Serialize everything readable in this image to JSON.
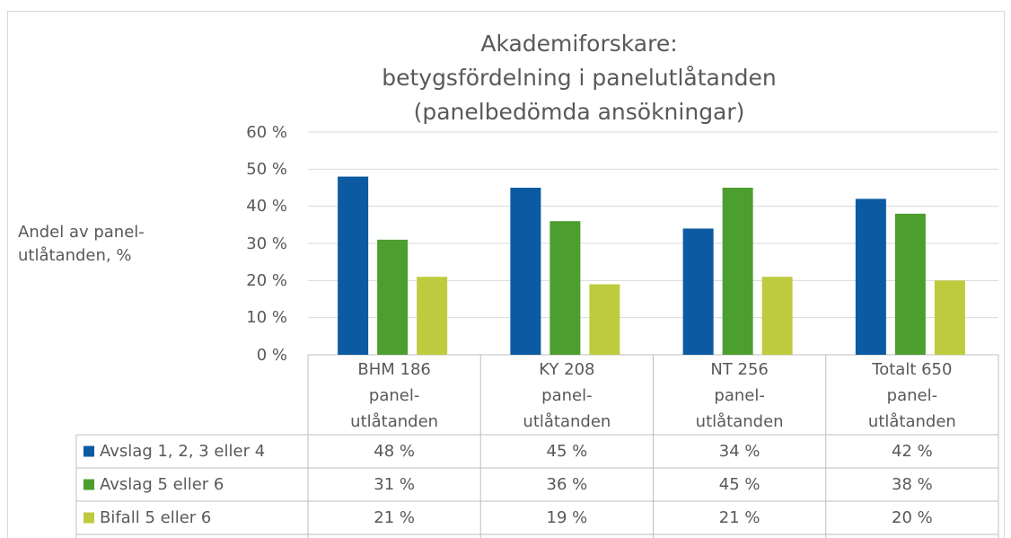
{
  "chart_data": {
    "type": "bar",
    "title": "Akademiforskare:\nbetygsfördelning i panelutlåtanden\n(panelbedömda ansökningar)",
    "y_label": "Andel av panel-\nutlåtanden, %",
    "categories": [
      "BHM 186\npanel-\nutlåtanden",
      "KY 208\npanel-\nutlåtanden",
      "NT 256\npanel-\nutlåtanden",
      "Totalt 650\npanel-\nutlåtanden"
    ],
    "series": [
      {
        "name": "Avslag 1, 2, 3 eller 4",
        "color": "#0b5aa2",
        "values": [
          48,
          45,
          34,
          42
        ],
        "value_labels": [
          "48 %",
          "45 %",
          "34 %",
          "42 %"
        ]
      },
      {
        "name": "Avslag 5 eller 6",
        "color": "#4c9e2f",
        "values": [
          31,
          36,
          45,
          38
        ],
        "value_labels": [
          "31 %",
          "36 %",
          "45 %",
          "38 %"
        ]
      },
      {
        "name": "Bifall 5 eller 6",
        "color": "#bfcb3e",
        "values": [
          21,
          19,
          21,
          20
        ],
        "value_labels": [
          "21 %",
          "19 %",
          "21 %",
          "20 %"
        ]
      }
    ],
    "ylim": [
      0,
      60
    ],
    "yticks": [
      {
        "value": 0,
        "label": "0 %"
      },
      {
        "value": 10,
        "label": "10 %"
      },
      {
        "value": 20,
        "label": "20 %"
      },
      {
        "value": 30,
        "label": "30 %"
      },
      {
        "value": 40,
        "label": "40 %"
      },
      {
        "value": 50,
        "label": "50 %"
      },
      {
        "value": 60,
        "label": "60 %"
      }
    ],
    "grid": true
  }
}
